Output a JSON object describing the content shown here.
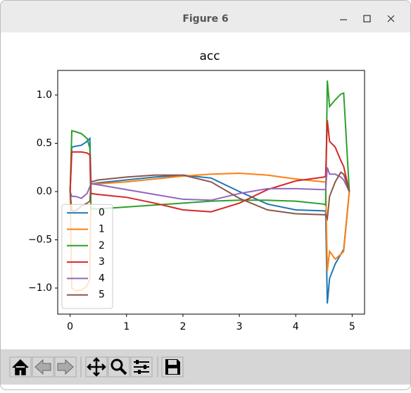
{
  "window": {
    "title": "Figure 6"
  },
  "chart_data": {
    "type": "line",
    "title": "acc",
    "x": [
      0,
      0.03,
      0.1,
      0.2,
      0.3,
      0.35,
      0.37,
      0.5,
      1.0,
      1.5,
      2.0,
      2.5,
      3.0,
      3.5,
      4.0,
      4.5,
      4.53,
      4.56,
      4.6,
      4.7,
      4.8,
      4.85,
      4.95
    ],
    "series": [
      {
        "name": "0",
        "color": "#1f77b4",
        "values": [
          0,
          0.46,
          0.47,
          0.48,
          0.52,
          0.55,
          0.08,
          0.09,
          0.12,
          0.15,
          0.17,
          0.14,
          0.0,
          -0.13,
          -0.19,
          -0.2,
          -0.2,
          -1.16,
          -0.9,
          -0.75,
          -0.65,
          -0.6,
          0
        ]
      },
      {
        "name": "1",
        "color": "#ff7f0e",
        "values": [
          0,
          -1.0,
          -1.03,
          -1.02,
          -0.98,
          -0.9,
          0.08,
          0.08,
          0.1,
          0.13,
          0.16,
          0.18,
          0.19,
          0.17,
          0.13,
          0.1,
          0.1,
          -0.82,
          -0.62,
          -0.7,
          -0.65,
          -0.62,
          0
        ]
      },
      {
        "name": "2",
        "color": "#2ca02c",
        "values": [
          0,
          0.63,
          0.62,
          0.6,
          0.55,
          0.45,
          -0.18,
          -0.18,
          -0.16,
          -0.14,
          -0.12,
          -0.1,
          -0.09,
          -0.09,
          -0.1,
          -0.13,
          -0.14,
          1.15,
          0.88,
          0.95,
          1.01,
          1.02,
          0
        ]
      },
      {
        "name": "3",
        "color": "#d62728",
        "values": [
          0,
          0.41,
          0.41,
          0.41,
          0.4,
          0.38,
          -0.02,
          -0.03,
          -0.06,
          -0.12,
          -0.19,
          -0.21,
          -0.12,
          0.02,
          0.11,
          0.15,
          0.16,
          0.74,
          0.52,
          0.46,
          0.32,
          0.26,
          0
        ]
      },
      {
        "name": "4",
        "color": "#9467bd",
        "values": [
          0,
          -0.05,
          -0.05,
          -0.07,
          -0.02,
          0.05,
          0.08,
          0.07,
          0.02,
          -0.03,
          -0.08,
          -0.09,
          -0.02,
          0.03,
          0.03,
          0.02,
          0.02,
          0.25,
          0.18,
          0.18,
          0.15,
          0.12,
          0
        ]
      },
      {
        "name": "5",
        "color": "#8c564b",
        "values": [
          0,
          -0.2,
          -0.2,
          -0.15,
          -0.12,
          -0.1,
          0.1,
          0.12,
          0.15,
          0.17,
          0.17,
          0.1,
          -0.07,
          -0.19,
          -0.23,
          -0.24,
          -0.24,
          -0.28,
          -0.05,
          0.1,
          0.2,
          0.18,
          0
        ]
      }
    ],
    "xlim": [
      -0.22,
      5.22
    ],
    "xticks": [
      0,
      1,
      2,
      3,
      4,
      5
    ],
    "ylim": [
      -1.27,
      1.255
    ],
    "yticks": [
      {
        "value": -1,
        "label": "−1.0"
      },
      {
        "value": -0.5,
        "label": "−0.5"
      },
      {
        "value": 0,
        "label": "0.0"
      },
      {
        "value": 0.5,
        "label": "0.5"
      },
      {
        "value": 1,
        "label": "1.0"
      }
    ],
    "legend": "lower left"
  }
}
